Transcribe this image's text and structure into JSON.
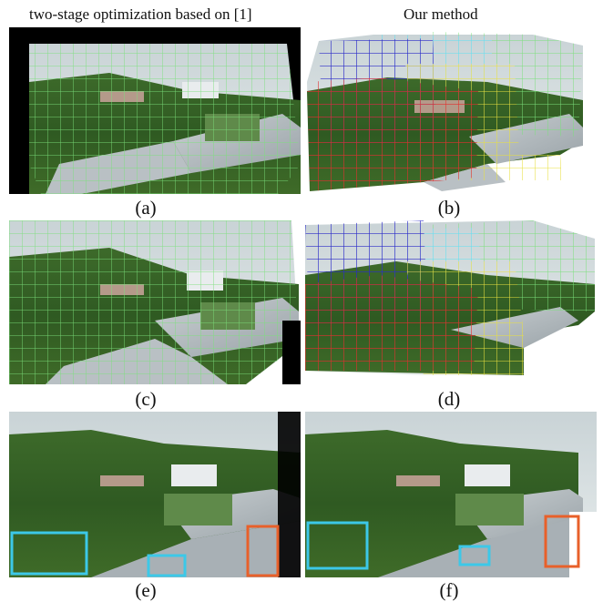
{
  "header": {
    "left": "two-stage optimization based on [1]",
    "right": "Our method"
  },
  "panels": [
    {
      "label": "(a)"
    },
    {
      "label": "(b)"
    },
    {
      "label": "(c)"
    },
    {
      "label": "(d)"
    },
    {
      "label": "(e)"
    },
    {
      "label": "(f)"
    }
  ],
  "colors": {
    "grid_green": "#7be07b",
    "grid_blue": "#2b2bc8",
    "grid_cyan": "#5fe0f0",
    "grid_yellow": "#e8e040",
    "grid_red": "#e03030",
    "highlight_cyan": "#3cc8e8",
    "highlight_orange": "#e8602a"
  }
}
